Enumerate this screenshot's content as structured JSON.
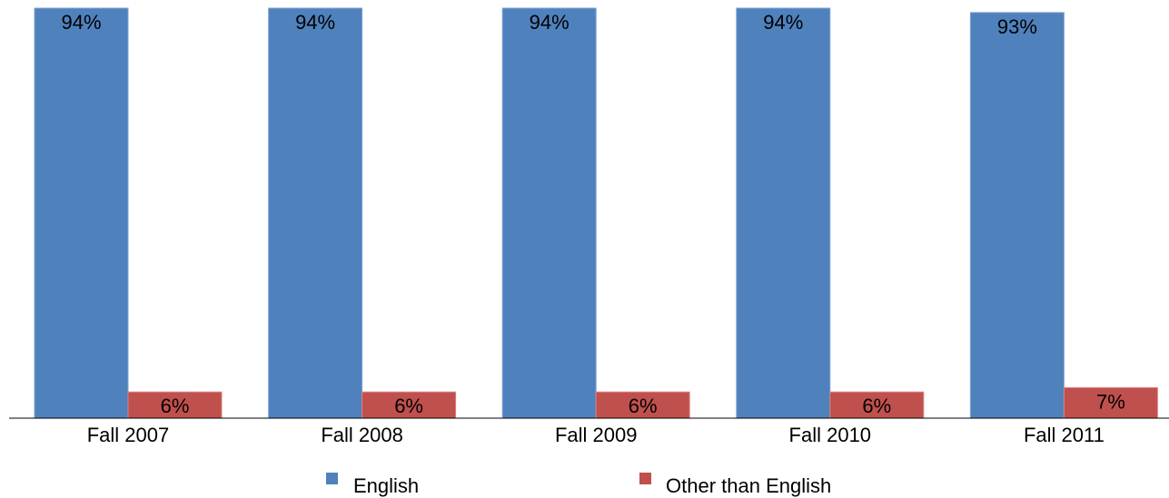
{
  "chart_data": {
    "type": "bar",
    "title": "",
    "xlabel": "",
    "ylabel": "",
    "ylim": [
      0,
      100
    ],
    "grid": false,
    "legend_position": "bottom",
    "categories": [
      "Fall 2007",
      "Fall 2008",
      "Fall 2009",
      "Fall 2010",
      "Fall 2011"
    ],
    "series": [
      {
        "name": "English",
        "color": "#4f81bd",
        "values": [
          94,
          94,
          94,
          94,
          93
        ],
        "labels": [
          "94%",
          "94%",
          "94%",
          "94%",
          "93%"
        ]
      },
      {
        "name": "Other than English",
        "color": "#c0504d",
        "values": [
          6,
          6,
          6,
          6,
          7
        ],
        "labels": [
          "6%",
          "6%",
          "6%",
          "6%",
          "7%"
        ]
      }
    ]
  }
}
